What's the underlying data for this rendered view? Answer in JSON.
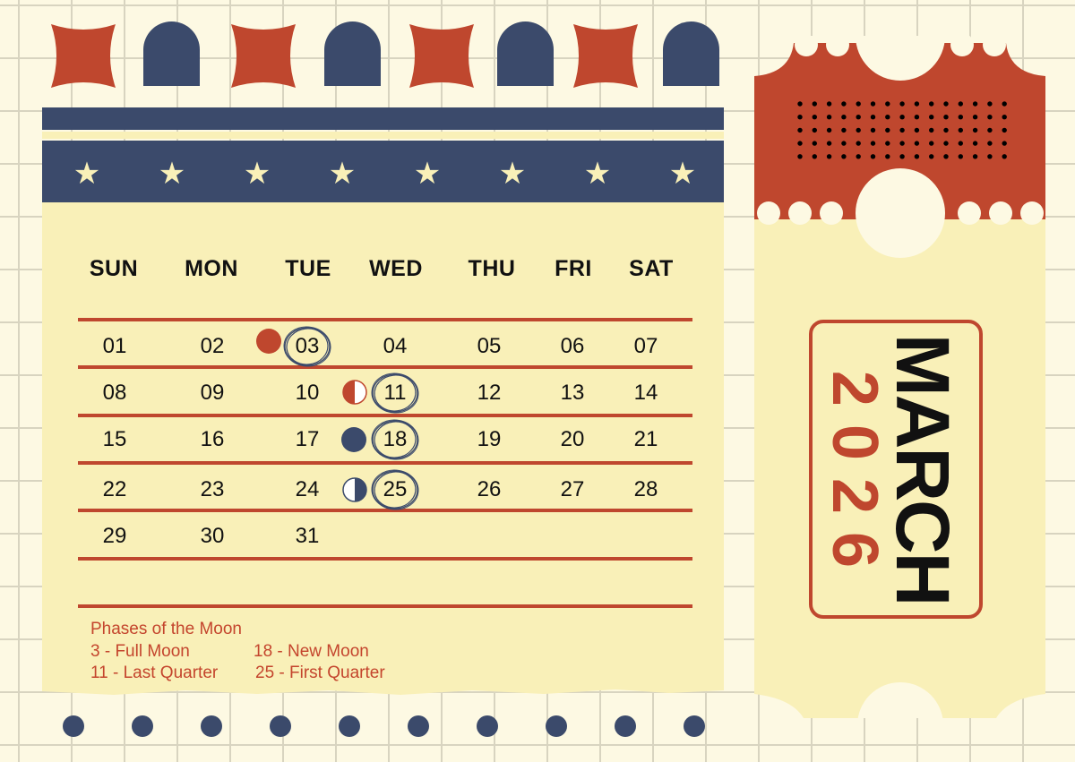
{
  "calendar": {
    "weekdays": [
      "SUN",
      "MON",
      "TUE",
      "WED",
      "THU",
      "FRI",
      "SAT"
    ],
    "weeks": [
      [
        "01",
        "02",
        "03",
        "04",
        "05",
        "06",
        "07"
      ],
      [
        "08",
        "09",
        "10",
        "11",
        "12",
        "13",
        "14"
      ],
      [
        "15",
        "16",
        "17",
        "18",
        "19",
        "20",
        "21"
      ],
      [
        "22",
        "23",
        "24",
        "25",
        "26",
        "27",
        "28"
      ],
      [
        "29",
        "30",
        "31",
        "",
        "",
        "",
        ""
      ]
    ],
    "circled_days": [
      "03",
      "11",
      "18",
      "25"
    ]
  },
  "legend": {
    "title": "Phases of the Moon",
    "full_moon": "3 - Full Moon",
    "new_moon": "18 - New Moon",
    "last_quarter": "11 - Last Quarter",
    "first_quarter": "25 - First Quarter"
  },
  "ticket": {
    "month": "MARCH",
    "year": "2026"
  },
  "colors": {
    "red": "#bf472e",
    "navy": "#3b4a6b",
    "cream": "#f9f0b8",
    "background": "#fdf9e3"
  }
}
